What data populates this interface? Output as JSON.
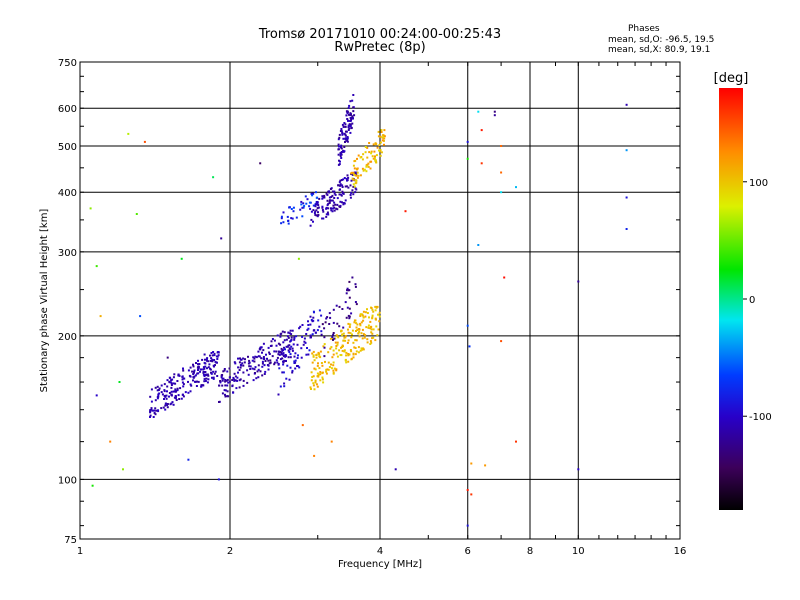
{
  "chart_data": {
    "type": "scatter",
    "title": "Tromsø 20171010 00:24:00-00:25:43",
    "subtitle": "RwPretec (8p)",
    "xlabel": "Frequency [MHz]",
    "ylabel": "Stationary phase Virtual Height [km]",
    "x_scale": "log",
    "y_scale": "log",
    "xlim": [
      1,
      16
    ],
    "ylim": [
      75,
      750
    ],
    "x_ticks": [
      1,
      2,
      4,
      6,
      8,
      10,
      16
    ],
    "x_tick_labels": [
      "1",
      "2",
      "4",
      "6",
      "8",
      "10",
      "16"
    ],
    "y_ticks": [
      75,
      100,
      200,
      300,
      400,
      500,
      600,
      750
    ],
    "y_tick_labels": [
      "75",
      "100",
      "200",
      "300",
      "400",
      "500",
      "600",
      "750"
    ],
    "grid": true,
    "colorbar": {
      "label": "[deg]",
      "range": [
        -180,
        180
      ],
      "ticks": [
        100,
        0,
        -100
      ],
      "tick_labels": [
        "100",
        "0",
        "-100"
      ]
    },
    "stats": {
      "title": "Phases",
      "o_mode": "mean, sd,O: -96.5, 19.5",
      "x_mode": "mean, sd,X:  80.9, 19.1"
    },
    "clusters": [
      {
        "freq": [
          1.38,
          1.9
        ],
        "height": [
          133,
          185
        ],
        "phase": [
          -120,
          -100
        ],
        "count": 230
      },
      {
        "freq": [
          1.9,
          2.7
        ],
        "height": [
          145,
          205
        ],
        "phase": [
          -125,
          -100
        ],
        "count": 200
      },
      {
        "freq": [
          2.5,
          3.05
        ],
        "height": [
          150,
          230
        ],
        "phase": [
          -115,
          -85
        ],
        "count": 90
      },
      {
        "freq": [
          2.9,
          4.0
        ],
        "height": [
          152,
          230
        ],
        "phase": [
          90,
          120
        ],
        "count": 230
      },
      {
        "freq": [
          3.05,
          3.6
        ],
        "height": [
          175,
          265
        ],
        "phase": [
          -140,
          -110
        ],
        "count": 45
      },
      {
        "freq": [
          2.5,
          3.0
        ],
        "height": [
          330,
          400
        ],
        "phase": [
          -105,
          -55
        ],
        "count": 45
      },
      {
        "freq": [
          2.9,
          3.6
        ],
        "height": [
          330,
          440
        ],
        "phase": [
          -125,
          -100
        ],
        "count": 140
      },
      {
        "freq": [
          3.3,
          3.55
        ],
        "height": [
          440,
          640
        ],
        "phase": [
          -125,
          -100
        ],
        "count": 100
      },
      {
        "freq": [
          3.5,
          4.1
        ],
        "height": [
          400,
          540
        ],
        "phase": [
          85,
          125
        ],
        "count": 90
      }
    ],
    "points": [
      {
        "f": 1.05,
        "h": 370,
        "p": 60
      },
      {
        "f": 1.08,
        "h": 280,
        "p": 40
      },
      {
        "f": 1.1,
        "h": 220,
        "p": 110
      },
      {
        "f": 1.15,
        "h": 120,
        "p": 130
      },
      {
        "f": 1.08,
        "h": 150,
        "p": -100
      },
      {
        "f": 1.06,
        "h": 97,
        "p": 30
      },
      {
        "f": 1.2,
        "h": 160,
        "p": 20
      },
      {
        "f": 1.22,
        "h": 105,
        "p": 60
      },
      {
        "f": 1.25,
        "h": 530,
        "p": 70
      },
      {
        "f": 1.3,
        "h": 360,
        "p": 45
      },
      {
        "f": 1.32,
        "h": 220,
        "p": -60
      },
      {
        "f": 1.35,
        "h": 510,
        "p": 150
      },
      {
        "f": 1.5,
        "h": 180,
        "p": -130
      },
      {
        "f": 1.6,
        "h": 290,
        "p": 20
      },
      {
        "f": 1.65,
        "h": 110,
        "p": -80
      },
      {
        "f": 1.85,
        "h": 430,
        "p": 10
      },
      {
        "f": 1.9,
        "h": 100,
        "p": -90
      },
      {
        "f": 1.92,
        "h": 320,
        "p": -120
      },
      {
        "f": 2.3,
        "h": 460,
        "p": -140
      },
      {
        "f": 2.75,
        "h": 290,
        "p": 60
      },
      {
        "f": 2.8,
        "h": 130,
        "p": 140
      },
      {
        "f": 2.95,
        "h": 112,
        "p": 130
      },
      {
        "f": 3.2,
        "h": 120,
        "p": 130
      },
      {
        "f": 4.3,
        "h": 105,
        "p": -110
      },
      {
        "f": 4.5,
        "h": 365,
        "p": 170
      },
      {
        "f": 6.0,
        "h": 510,
        "p": -90
      },
      {
        "f": 6.0,
        "h": 470,
        "p": 30
      },
      {
        "f": 6.0,
        "h": 210,
        "p": -60
      },
      {
        "f": 6.05,
        "h": 190,
        "p": -70
      },
      {
        "f": 6.1,
        "h": 108,
        "p": 120
      },
      {
        "f": 6.0,
        "h": 95,
        "p": 170
      },
      {
        "f": 6.1,
        "h": 93,
        "p": 160
      },
      {
        "f": 6.0,
        "h": 80,
        "p": -90
      },
      {
        "f": 6.3,
        "h": 590,
        "p": -20
      },
      {
        "f": 6.4,
        "h": 540,
        "p": 170
      },
      {
        "f": 6.4,
        "h": 460,
        "p": 160
      },
      {
        "f": 6.3,
        "h": 310,
        "p": -40
      },
      {
        "f": 6.5,
        "h": 107,
        "p": 120
      },
      {
        "f": 6.8,
        "h": 580,
        "p": -120
      },
      {
        "f": 6.8,
        "h": 590,
        "p": -130
      },
      {
        "f": 7.0,
        "h": 500,
        "p": 140
      },
      {
        "f": 7.0,
        "h": 440,
        "p": 140
      },
      {
        "f": 7.0,
        "h": 400,
        "p": -20
      },
      {
        "f": 7.1,
        "h": 265,
        "p": 175
      },
      {
        "f": 7.0,
        "h": 195,
        "p": 150
      },
      {
        "f": 7.5,
        "h": 410,
        "p": -30
      },
      {
        "f": 7.5,
        "h": 120,
        "p": 160
      },
      {
        "f": 10.0,
        "h": 260,
        "p": -120
      },
      {
        "f": 10.0,
        "h": 105,
        "p": -100
      },
      {
        "f": 12.5,
        "h": 610,
        "p": -110
      },
      {
        "f": 12.5,
        "h": 490,
        "p": -40
      },
      {
        "f": 12.5,
        "h": 390,
        "p": -90
      },
      {
        "f": 12.5,
        "h": 335,
        "p": -80
      }
    ]
  }
}
